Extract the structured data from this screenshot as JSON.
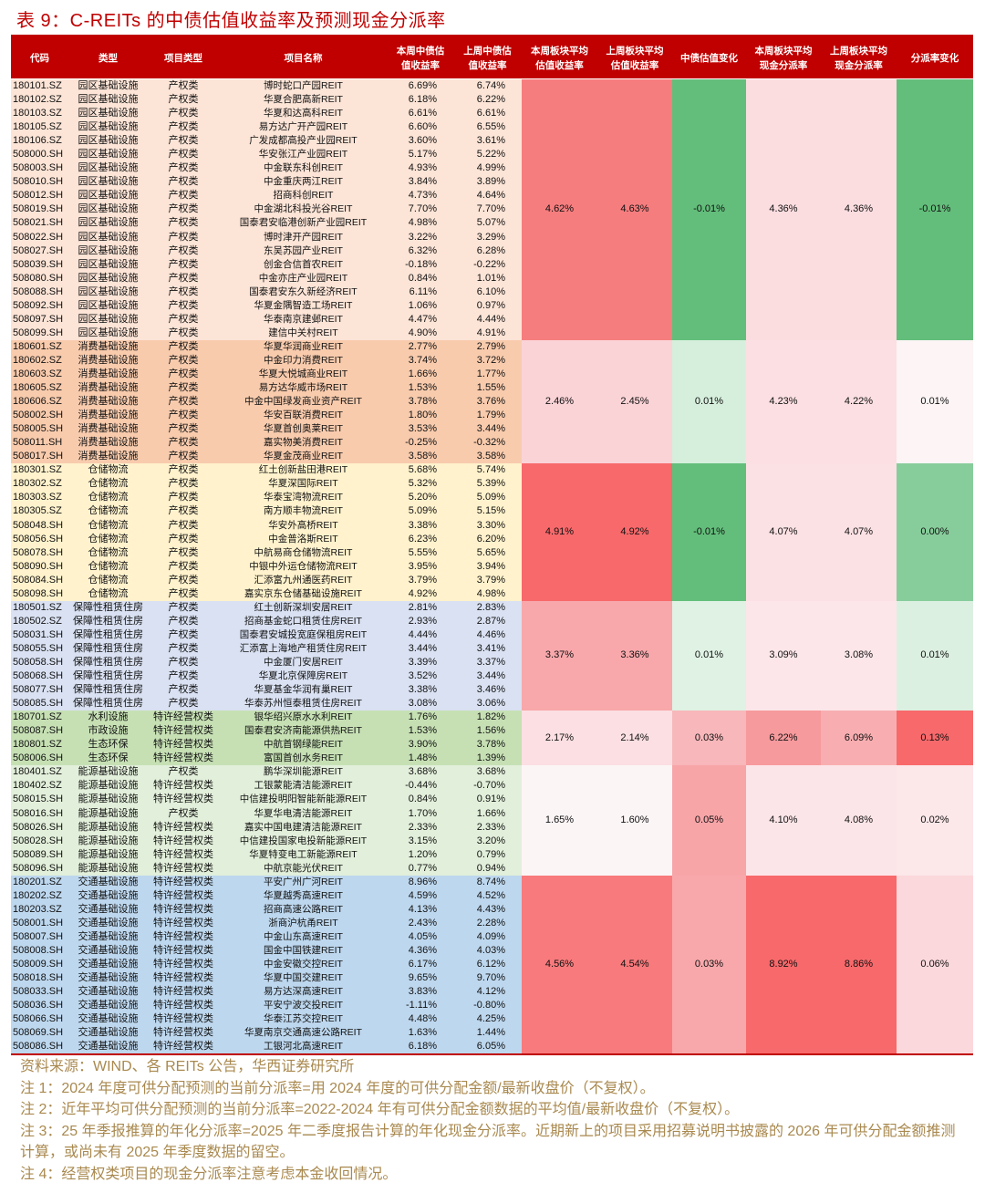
{
  "title": "表 9：C-REITs 的中债估值收益率及预测现金分派率",
  "headers": [
    "代码",
    "类型",
    "项目类型",
    "项目名称",
    "本周中债估\n值收益率",
    "上周中债估\n值收益率",
    "本周板块平均\n估值收益率",
    "上周板块平均\n估值收益率",
    "中债估值变化",
    "本周板块平均\n现金分派率",
    "上周板块平均\n现金分派率",
    "分派率变化"
  ],
  "groups": [
    {
      "bg": "#fce4d6",
      "agg": [
        "4.62%",
        "4.63%",
        "-0.01%",
        "4.36%",
        "4.36%",
        "-0.01%"
      ],
      "agg_colors": [
        "#f67d7e",
        "#f67d7e",
        "#63be7b",
        "#fbdde0",
        "#fbdde0",
        "#63be7b"
      ],
      "rows": [
        [
          "180101.SZ",
          "园区基础设施",
          "产权类",
          "博时蛇口产园REIT",
          "6.69%",
          "6.74%"
        ],
        [
          "180102.SZ",
          "园区基础设施",
          "产权类",
          "华夏合肥高新REIT",
          "6.18%",
          "6.22%"
        ],
        [
          "180103.SZ",
          "园区基础设施",
          "产权类",
          "华夏和达高科REIT",
          "6.61%",
          "6.61%"
        ],
        [
          "180105.SZ",
          "园区基础设施",
          "产权类",
          "易方达广开产园REIT",
          "6.60%",
          "6.55%"
        ],
        [
          "180106.SZ",
          "园区基础设施",
          "产权类",
          "广发成都高投产业园REIT",
          "3.60%",
          "3.61%"
        ],
        [
          "508000.SH",
          "园区基础设施",
          "产权类",
          "华安张江产业园REIT",
          "5.17%",
          "5.22%"
        ],
        [
          "508003.SH",
          "园区基础设施",
          "产权类",
          "中金联东科创REIT",
          "4.93%",
          "4.99%"
        ],
        [
          "508010.SH",
          "园区基础设施",
          "产权类",
          "中金重庆两江REIT",
          "3.84%",
          "3.89%"
        ],
        [
          "508012.SH",
          "园区基础设施",
          "产权类",
          "招商科创REIT",
          "4.73%",
          "4.64%"
        ],
        [
          "508019.SH",
          "园区基础设施",
          "产权类",
          "中金湖北科投光谷REIT",
          "7.70%",
          "7.70%"
        ],
        [
          "508021.SH",
          "园区基础设施",
          "产权类",
          "国泰君安临港创新产业园REIT",
          "4.98%",
          "5.07%"
        ],
        [
          "508022.SH",
          "园区基础设施",
          "产权类",
          "博时津开产园REIT",
          "3.22%",
          "3.29%"
        ],
        [
          "508027.SH",
          "园区基础设施",
          "产权类",
          "东吴苏园产业REIT",
          "6.32%",
          "6.28%"
        ],
        [
          "508039.SH",
          "园区基础设施",
          "产权类",
          "创金合信首农REIT",
          "-0.18%",
          "-0.22%"
        ],
        [
          "508080.SH",
          "园区基础设施",
          "产权类",
          "中金亦庄产业园REIT",
          "0.84%",
          "1.01%"
        ],
        [
          "508088.SH",
          "园区基础设施",
          "产权类",
          "国泰君安东久新经济REIT",
          "6.11%",
          "6.10%"
        ],
        [
          "508092.SH",
          "园区基础设施",
          "产权类",
          "华夏金隅智造工场REIT",
          "1.06%",
          "0.97%"
        ],
        [
          "508097.SH",
          "园区基础设施",
          "产权类",
          "华泰南京建邺REIT",
          "4.47%",
          "4.44%"
        ],
        [
          "508099.SH",
          "园区基础设施",
          "产权类",
          "建信中关村REIT",
          "4.90%",
          "4.91%"
        ]
      ]
    },
    {
      "bg": "#f8cbad",
      "agg": [
        "2.46%",
        "2.45%",
        "0.01%",
        "4.23%",
        "4.22%",
        "0.01%"
      ],
      "agg_colors": [
        "#fad3d7",
        "#fad3d7",
        "#d6efdd",
        "#fbdfe2",
        "#fbdfe2",
        "#fcf4f5"
      ],
      "rows": [
        [
          "180601.SZ",
          "消费基础设施",
          "产权类",
          "华夏华润商业REIT",
          "2.77%",
          "2.79%"
        ],
        [
          "180602.SZ",
          "消费基础设施",
          "产权类",
          "中金印力消费REIT",
          "3.74%",
          "3.72%"
        ],
        [
          "180603.SZ",
          "消费基础设施",
          "产权类",
          "华夏大悦城商业REIT",
          "1.66%",
          "1.77%"
        ],
        [
          "180605.SZ",
          "消费基础设施",
          "产权类",
          "易方达华威市场REIT",
          "1.53%",
          "1.55%"
        ],
        [
          "180606.SZ",
          "消费基础设施",
          "产权类",
          "中金中国绿发商业资产REIT",
          "3.78%",
          "3.76%"
        ],
        [
          "508002.SH",
          "消费基础设施",
          "产权类",
          "华安百联消费REIT",
          "1.80%",
          "1.79%"
        ],
        [
          "508005.SH",
          "消费基础设施",
          "产权类",
          "华夏首创奥莱REIT",
          "3.53%",
          "3.44%"
        ],
        [
          "508011.SH",
          "消费基础设施",
          "产权类",
          "嘉实物美消费REIT",
          "-0.25%",
          "-0.32%"
        ],
        [
          "508017.SH",
          "消费基础设施",
          "产权类",
          "华夏金茂商业REIT",
          "3.58%",
          "3.58%"
        ]
      ]
    },
    {
      "bg": "#fff2cc",
      "agg": [
        "4.91%",
        "4.92%",
        "-0.01%",
        "4.07%",
        "4.07%",
        "0.00%"
      ],
      "agg_colors": [
        "#f8696b",
        "#f8696b",
        "#63be7b",
        "#fbe1e4",
        "#fbe1e4",
        "#87cd9b"
      ],
      "rows": [
        [
          "180301.SZ",
          "仓储物流",
          "产权类",
          "红土创新盐田港REIT",
          "5.68%",
          "5.74%"
        ],
        [
          "180302.SZ",
          "仓储物流",
          "产权类",
          "华夏深国际REIT",
          "5.32%",
          "5.39%"
        ],
        [
          "180303.SZ",
          "仓储物流",
          "产权类",
          "华泰宝湾物流REIT",
          "5.20%",
          "5.09%"
        ],
        [
          "180305.SZ",
          "仓储物流",
          "产权类",
          "南方顺丰物流REIT",
          "5.09%",
          "5.15%"
        ],
        [
          "508048.SH",
          "仓储物流",
          "产权类",
          "华安外高桥REIT",
          "3.38%",
          "3.30%"
        ],
        [
          "508056.SH",
          "仓储物流",
          "产权类",
          "中金普洛斯REIT",
          "6.23%",
          "6.20%"
        ],
        [
          "508078.SH",
          "仓储物流",
          "产权类",
          "中航易商仓储物流REIT",
          "5.55%",
          "5.65%"
        ],
        [
          "508090.SH",
          "仓储物流",
          "产权类",
          "中银中外运仓储物流REIT",
          "3.95%",
          "3.94%"
        ],
        [
          "508084.SH",
          "仓储物流",
          "产权类",
          "汇添富九州通医药REIT",
          "3.79%",
          "3.79%"
        ],
        [
          "508098.SH",
          "仓储物流",
          "产权类",
          "嘉实京东仓储基础设施REIT",
          "4.92%",
          "4.98%"
        ]
      ]
    },
    {
      "bg": "#d9e1f2",
      "agg": [
        "3.37%",
        "3.36%",
        "0.01%",
        "3.09%",
        "3.08%",
        "0.01%"
      ],
      "agg_colors": [
        "#f8a8ab",
        "#f8a8ab",
        "#dff2e4",
        "#fce6e9",
        "#fce6e9",
        "#dcf0e1"
      ],
      "rows": [
        [
          "180501.SZ",
          "保障性租赁住房",
          "产权类",
          "红土创新深圳安居REIT",
          "2.81%",
          "2.83%"
        ],
        [
          "180502.SZ",
          "保障性租赁住房",
          "产权类",
          "招商基金蛇口租赁住房REIT",
          "2.93%",
          "2.87%"
        ],
        [
          "508031.SH",
          "保障性租赁住房",
          "产权类",
          "国泰君安城投宽庭保租房REIT",
          "4.44%",
          "4.46%"
        ],
        [
          "508055.SH",
          "保障性租赁住房",
          "产权类",
          "汇添富上海地产租赁住房REIT",
          "3.44%",
          "3.41%"
        ],
        [
          "508058.SH",
          "保障性租赁住房",
          "产权类",
          "中金厦门安居REIT",
          "3.39%",
          "3.37%"
        ],
        [
          "508068.SH",
          "保障性租赁住房",
          "产权类",
          "华夏北京保障房REIT",
          "3.52%",
          "3.44%"
        ],
        [
          "508077.SH",
          "保障性租赁住房",
          "产权类",
          "华夏基金华润有巢REIT",
          "3.38%",
          "3.46%"
        ],
        [
          "508085.SH",
          "保障性租赁住房",
          "产权类",
          "华泰苏州恒泰租赁住房REIT",
          "3.08%",
          "3.06%"
        ]
      ]
    },
    {
      "bg": "#c6e0b4",
      "agg": [
        "2.17%",
        "2.14%",
        "0.03%",
        "6.22%",
        "6.09%",
        "0.13%"
      ],
      "agg_colors": [
        "#fbdfe2",
        "#fbdfe2",
        "#f8b7ba",
        "#f69a9d",
        "#f8aeb1",
        "#f8696b"
      ],
      "rows": [
        [
          "180701.SZ",
          "水利设施",
          "特许经营权类",
          "银华绍兴原水水利REIT",
          "1.76%",
          "1.82%"
        ],
        [
          "508087.SH",
          "市政设施",
          "特许经营权类",
          "国泰君安济南能源供热REIT",
          "1.53%",
          "1.56%"
        ],
        [
          "180801.SZ",
          "生态环保",
          "特许经营权类",
          "中航首钢绿能REIT",
          "3.90%",
          "3.78%"
        ],
        [
          "508006.SH",
          "生态环保",
          "特许经营权类",
          "富国首创水务REIT",
          "1.48%",
          "1.39%"
        ]
      ]
    },
    {
      "bg": "#e2efda",
      "agg": [
        "1.65%",
        "1.60%",
        "0.05%",
        "4.10%",
        "4.08%",
        "0.02%"
      ],
      "agg_colors": [
        "#fcf5f6",
        "#fcf5f6",
        "#f8a5a8",
        "#fce5e8",
        "#fce5e8",
        "#fce7e9"
      ],
      "rows": [
        [
          "180401.SZ",
          "能源基础设施",
          "产权类",
          "鹏华深圳能源REIT",
          "3.68%",
          "3.68%"
        ],
        [
          "180402.SZ",
          "能源基础设施",
          "特许经营权类",
          "工银蒙能清洁能源REIT",
          "-0.44%",
          "-0.70%"
        ],
        [
          "508015.SH",
          "能源基础设施",
          "特许经营权类",
          "中信建投明阳智能新能源REIT",
          "0.84%",
          "0.91%"
        ],
        [
          "508016.SH",
          "能源基础设施",
          "产权类",
          "华夏华电清洁能源REIT",
          "1.70%",
          "1.66%"
        ],
        [
          "508026.SH",
          "能源基础设施",
          "特许经营权类",
          "嘉实中国电建清洁能源REIT",
          "2.33%",
          "2.33%"
        ],
        [
          "508028.SH",
          "能源基础设施",
          "特许经营权类",
          "中信建投国家电投新能源REIT",
          "3.15%",
          "3.20%"
        ],
        [
          "508089.SH",
          "能源基础设施",
          "特许经营权类",
          "华夏特变电工新能源REIT",
          "1.20%",
          "0.79%"
        ],
        [
          "508096.SH",
          "能源基础设施",
          "特许经营权类",
          "中航京能光伏REIT",
          "0.77%",
          "0.94%"
        ]
      ]
    },
    {
      "bg": "#bdd7ee",
      "agg": [
        "4.56%",
        "4.54%",
        "0.03%",
        "8.92%",
        "8.86%",
        "0.06%"
      ],
      "agg_colors": [
        "#f87a7c",
        "#f87a7c",
        "#f8a8ab",
        "#f8696b",
        "#f8696b",
        "#fbd8db"
      ],
      "rows": [
        [
          "180201.SZ",
          "交通基础设施",
          "特许经营权类",
          "平安广州广河REIT",
          "8.96%",
          "8.74%"
        ],
        [
          "180202.SZ",
          "交通基础设施",
          "特许经营权类",
          "华夏越秀高速REIT",
          "4.59%",
          "4.52%"
        ],
        [
          "180203.SZ",
          "交通基础设施",
          "特许经营权类",
          "招商高速公路REIT",
          "4.13%",
          "4.43%"
        ],
        [
          "508001.SH",
          "交通基础设施",
          "特许经营权类",
          "浙商沪杭甬REIT",
          "2.43%",
          "2.28%"
        ],
        [
          "508007.SH",
          "交通基础设施",
          "特许经营权类",
          "中金山东高速REIT",
          "4.05%",
          "4.09%"
        ],
        [
          "508008.SH",
          "交通基础设施",
          "特许经营权类",
          "国金中国铁建REIT",
          "4.36%",
          "4.03%"
        ],
        [
          "508009.SH",
          "交通基础设施",
          "特许经营权类",
          "中金安徽交控REIT",
          "6.17%",
          "6.12%"
        ],
        [
          "508018.SH",
          "交通基础设施",
          "特许经营权类",
          "华夏中国交建REIT",
          "9.65%",
          "9.70%"
        ],
        [
          "508033.SH",
          "交通基础设施",
          "特许经营权类",
          "易方达深高速REIT",
          "3.83%",
          "4.12%"
        ],
        [
          "508036.SH",
          "交通基础设施",
          "特许经营权类",
          "平安宁波交投REIT",
          "-1.11%",
          "-0.80%"
        ],
        [
          "508066.SH",
          "交通基础设施",
          "特许经营权类",
          "华泰江苏交控REIT",
          "4.48%",
          "4.25%"
        ],
        [
          "508069.SH",
          "交通基础设施",
          "特许经营权类",
          "华夏南京交通高速公路REIT",
          "1.63%",
          "1.44%"
        ],
        [
          "508086.SH",
          "交通基础设施",
          "特许经营权类",
          "工银河北高速REIT",
          "6.18%",
          "6.05%"
        ]
      ]
    }
  ],
  "notes": [
    "资料来源：WIND、各 REITs 公告，华西证券研究所",
    "注 1：2024 年度可供分配预测的当前分派率=用 2024 年度的可供分配金额/最新收盘价（不复权）。",
    "注 2：近年平均可供分配预测的当前分派率=2022-2024 年有可供分配金额数据的平均值/最新收盘价（不复权）。",
    "注 3：25 年季报推算的年化分派率=2025 年二季度报告计算的年化现金分派率。近期新上的项目采用招募说明书披露的 2026 年可供分配金额推测计算，或尚未有 2025 年季度数据的留空。",
    "注 4：经营权类项目的现金分派率注意考虑本金收回情况。"
  ]
}
